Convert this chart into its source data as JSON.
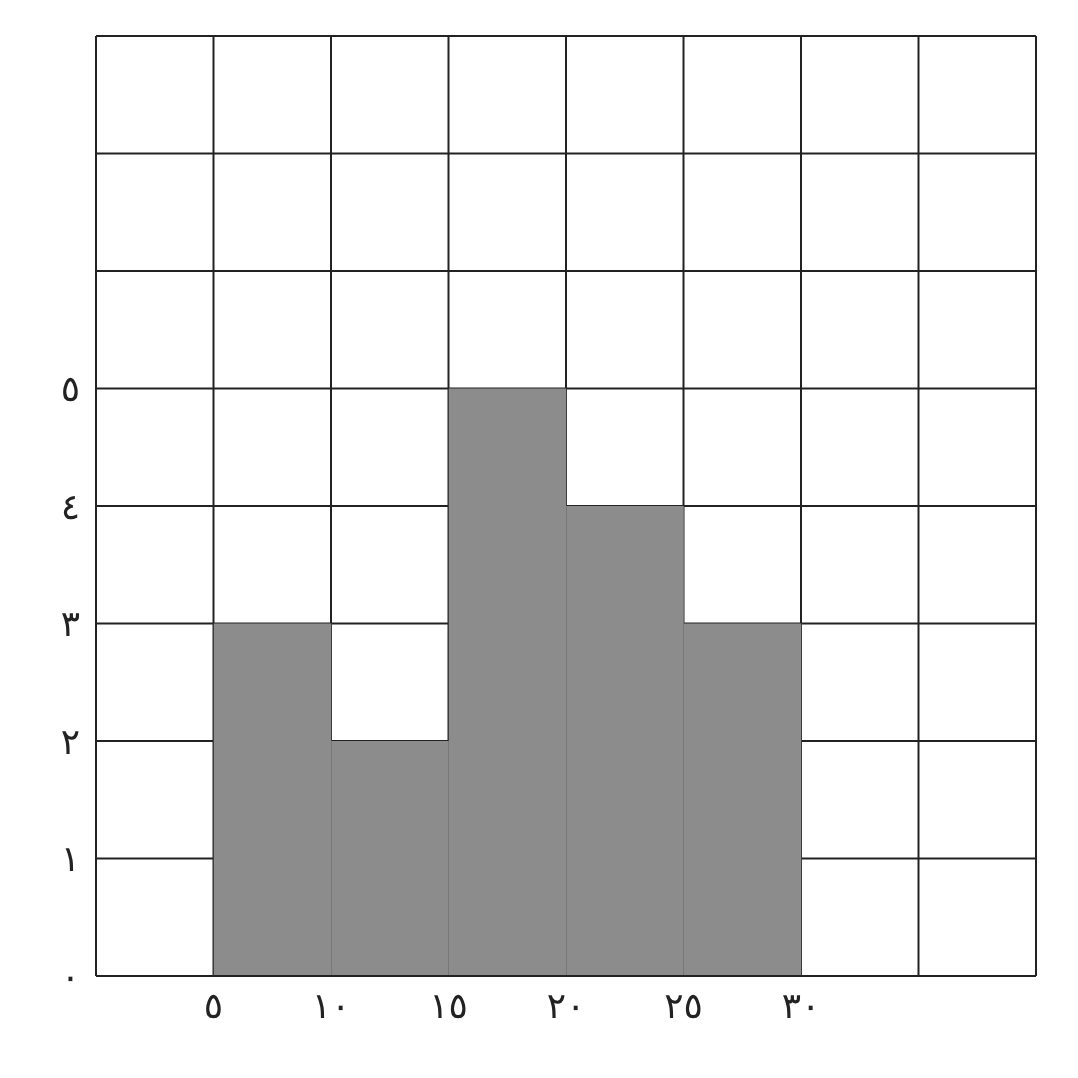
{
  "chart_data": {
    "type": "histogram",
    "bins": [
      5,
      10,
      15,
      20,
      25,
      30
    ],
    "values": [
      3,
      2,
      5,
      4,
      3
    ],
    "color": "#8c8c8c",
    "xlim": [
      0,
      40
    ],
    "xticks": [
      {
        "value": 0,
        "label": null
      },
      {
        "value": 5,
        "label": "٥"
      },
      {
        "value": 10,
        "label": "١٠"
      },
      {
        "value": 15,
        "label": "١٥"
      },
      {
        "value": 20,
        "label": "٢٠"
      },
      {
        "value": 25,
        "label": "٢٥"
      },
      {
        "value": 30,
        "label": "٣٠"
      },
      {
        "value": 35,
        "label": null
      },
      {
        "value": 40,
        "label": null
      }
    ],
    "ylim": [
      0,
      8
    ],
    "yticks": [
      {
        "value": 0,
        "label": "٠"
      },
      {
        "value": 1,
        "label": "١"
      },
      {
        "value": 2,
        "label": "٢"
      },
      {
        "value": 3,
        "label": "٣"
      },
      {
        "value": 4,
        "label": "٤"
      },
      {
        "value": 5,
        "label": "٥"
      },
      {
        "value": 6,
        "label": null
      },
      {
        "value": 7,
        "label": null
      },
      {
        "value": 8,
        "label": null
      }
    ],
    "grid": true
  }
}
